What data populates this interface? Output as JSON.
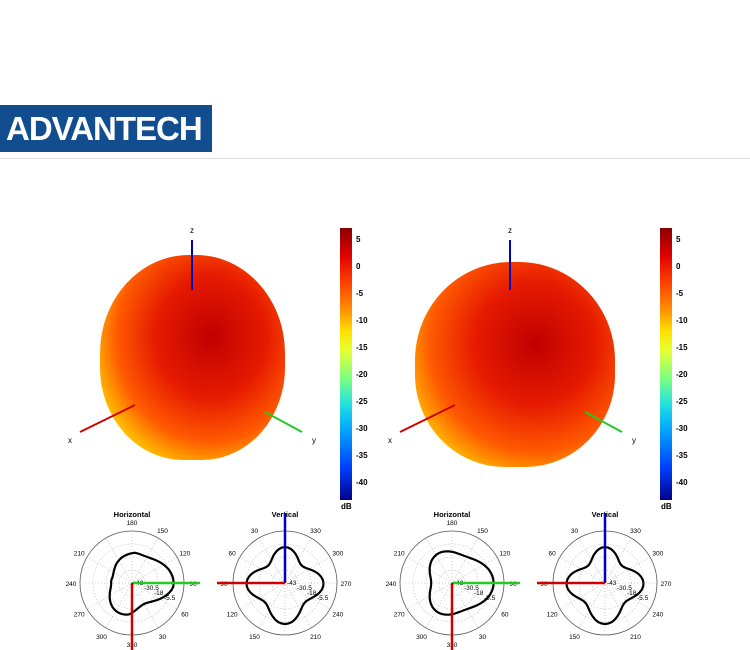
{
  "logo": "ADVANTECH",
  "colorbar": {
    "ticks": [
      "5",
      "0",
      "-5",
      "-10",
      "-15",
      "-20",
      "-25",
      "-30",
      "-35",
      "-40"
    ],
    "unit": "dB"
  },
  "axes": {
    "x": "x",
    "y": "y",
    "z": "z"
  },
  "plots": [
    {
      "title": "Horizontal",
      "angles": [
        "180",
        "150",
        "120",
        "90",
        "60",
        "30",
        "330",
        "300",
        "270",
        "240",
        "210"
      ],
      "rings": [
        "-43",
        "-30.5",
        "-18",
        "-5.5"
      ]
    },
    {
      "title": "Vertical",
      "angles": [
        "330",
        "300",
        "270",
        "240",
        "210",
        "150",
        "120",
        "90",
        "60",
        "30"
      ],
      "rings": [
        "-43",
        "-30.5",
        "-18",
        "-5.5"
      ]
    },
    {
      "title": "Horizontal",
      "angles": [
        "180",
        "150",
        "120",
        "90",
        "60",
        "30",
        "330",
        "300",
        "270",
        "240",
        "210"
      ],
      "rings": [
        "-43",
        "-30.5",
        "-18",
        "-5.5"
      ]
    },
    {
      "title": "Vertical",
      "angles": [
        "330",
        "300",
        "270",
        "240",
        "210",
        "150",
        "120",
        "90",
        "60",
        "30"
      ],
      "rings": [
        "-43",
        "-30.5",
        "-18",
        "-5.5"
      ]
    }
  ],
  "colors": {
    "brand": "#114d8f",
    "x_axis": "#d00000",
    "y_axis": "#22cc22",
    "z_axis": "#0000c0"
  }
}
